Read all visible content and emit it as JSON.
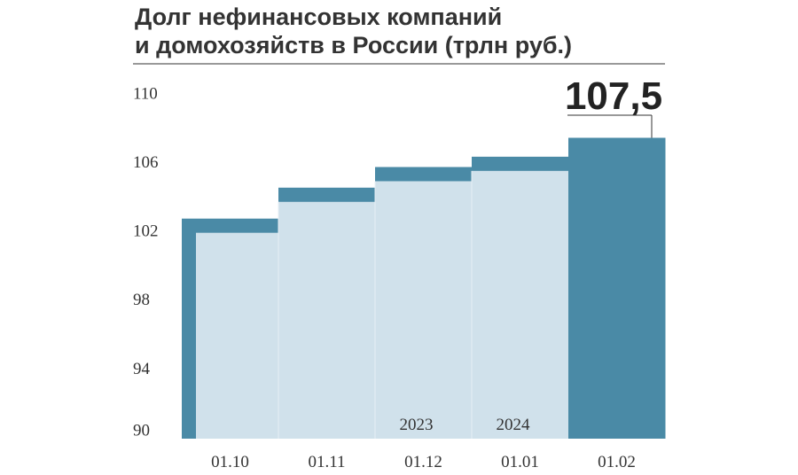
{
  "chart_data": {
    "type": "bar",
    "title_lines": [
      "Долг нефинансовых компаний",
      "и домохозяйств в России (трлн руб.)"
    ],
    "categories": [
      "01.10",
      "01.11",
      "01.12",
      "01.01",
      "01.02"
    ],
    "values": [
      102.8,
      104.6,
      105.8,
      106.4,
      107.5
    ],
    "value_labels": [
      null,
      null,
      null,
      null,
      "107,5"
    ],
    "year_labels": [
      "2023",
      "2024"
    ],
    "color": "#4a8aa6",
    "fill_color": "#d0e1eb",
    "ylim": [
      90,
      110
    ],
    "yticks": [
      90,
      94,
      98,
      102,
      106,
      110
    ]
  }
}
